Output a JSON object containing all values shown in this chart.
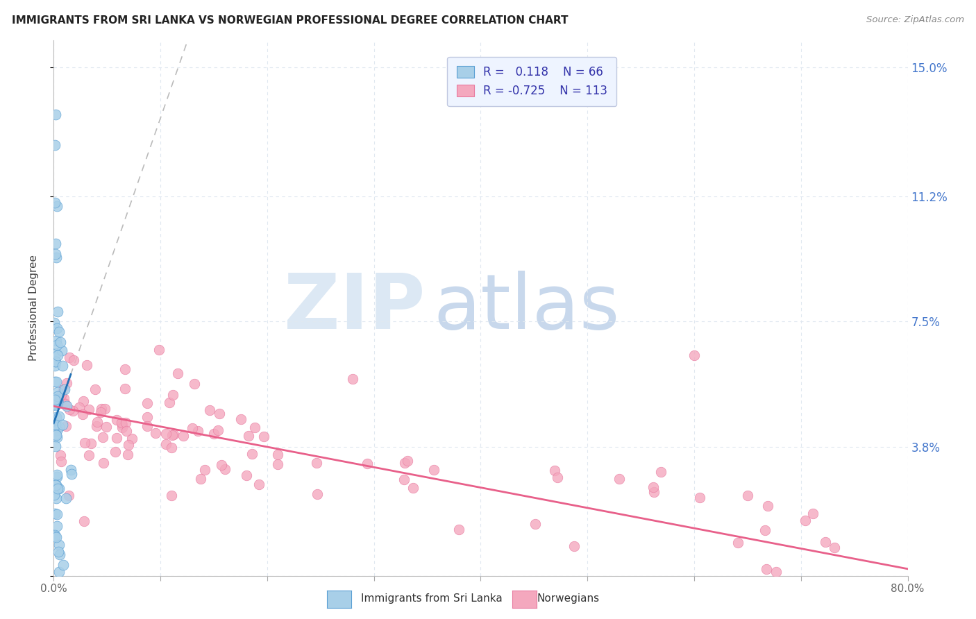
{
  "title": "IMMIGRANTS FROM SRI LANKA VS NORWEGIAN PROFESSIONAL DEGREE CORRELATION CHART",
  "source": "Source: ZipAtlas.com",
  "ylabel": "Professional Degree",
  "yticks": [
    0.0,
    0.038,
    0.075,
    0.112,
    0.15
  ],
  "ytick_labels": [
    "",
    "3.8%",
    "7.5%",
    "11.2%",
    "15.0%"
  ],
  "xlim": [
    0.0,
    0.8
  ],
  "ylim": [
    0.0,
    0.158
  ],
  "legend_blue_r_val": "0.118",
  "legend_blue_n_val": "66",
  "legend_pink_r_val": "-0.725",
  "legend_pink_n_val": "113",
  "legend_label_blue": "Immigrants from Sri Lanka",
  "legend_label_pink": "Norwegians",
  "blue_color": "#a8cfe8",
  "pink_color": "#f4a8be",
  "blue_edge_color": "#5a9fd4",
  "pink_edge_color": "#e87aa0",
  "blue_line_color": "#2171b5",
  "pink_line_color": "#e8608a",
  "watermark_zip_color": "#dce8f4",
  "watermark_atlas_color": "#c8d8ec",
  "grid_color": "#e0e8f0",
  "legend_text_color": "#3333aa",
  "legend_bg_color": "#eef4ff",
  "legend_border_color": "#c0c8e0"
}
